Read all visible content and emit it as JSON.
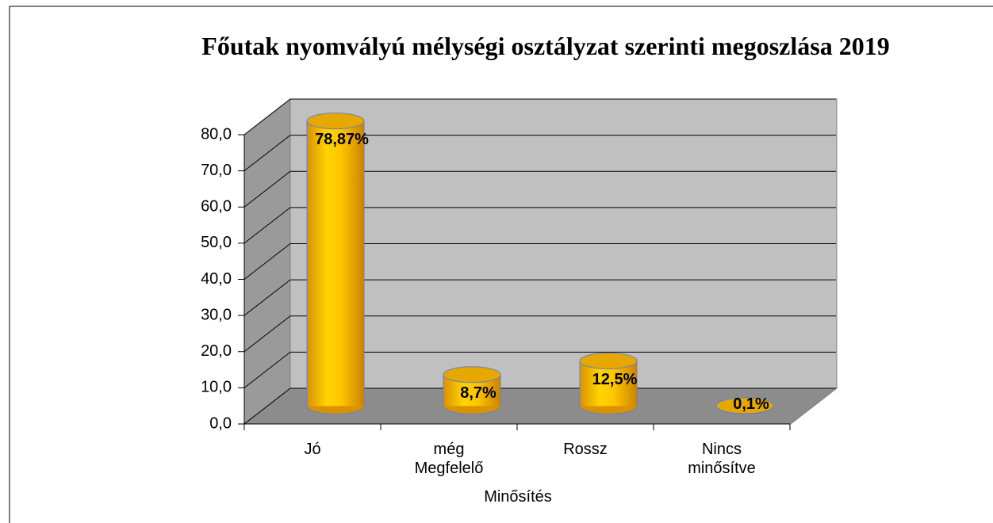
{
  "chart_data": {
    "type": "bar3d",
    "title": "Főutak nyomvályú mélységi osztályzat szerinti megoszlása 2019",
    "x_label": "Minősítés",
    "categories": [
      "Jó",
      "még Megfelelő",
      "Rossz",
      "Nincs minősítve"
    ],
    "values": [
      78.87,
      8.7,
      12.5,
      0.1
    ],
    "value_labels": [
      "78,87%",
      "8,7%",
      "12,5%",
      "0,1%"
    ],
    "color": "#ffc000",
    "ylim": [
      0,
      80
    ],
    "yticks": [
      {
        "value": 0,
        "label": "0,0"
      },
      {
        "value": 10,
        "label": "10,0"
      },
      {
        "value": 20,
        "label": "20,0"
      },
      {
        "value": 30,
        "label": "30,0"
      },
      {
        "value": 40,
        "label": "40,0"
      },
      {
        "value": 50,
        "label": "50,0"
      },
      {
        "value": 60,
        "label": "60,0"
      },
      {
        "value": 70,
        "label": "70,0"
      },
      {
        "value": 80,
        "label": "80,0"
      }
    ],
    "grid": true
  }
}
